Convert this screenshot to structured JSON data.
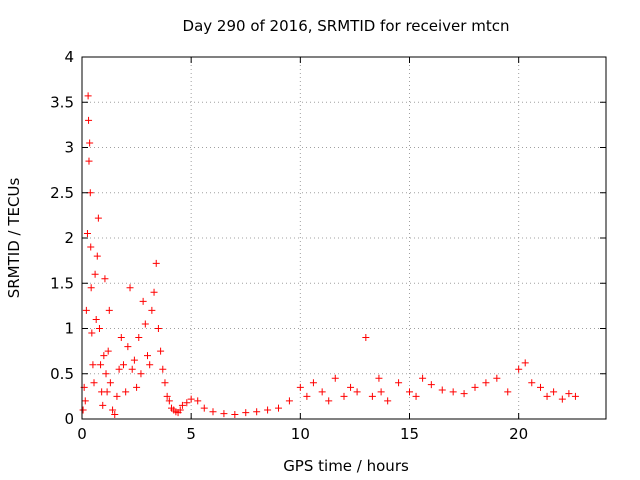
{
  "chart_data": {
    "type": "scatter",
    "title": "Day 290 of 2016, SRMTID for receiver mtcn",
    "xlabel": "GPS time / hours",
    "ylabel": "SRMTID / TECUs",
    "xlim": [
      0,
      24
    ],
    "ylim": [
      0,
      4
    ],
    "xticks": [
      0,
      5,
      10,
      15,
      20
    ],
    "xtick_labels": [
      "0",
      "5",
      "10",
      "15",
      "20"
    ],
    "yticks": [
      0,
      0.5,
      1,
      1.5,
      2,
      2.5,
      3,
      3.5,
      4
    ],
    "ytick_labels": [
      "0",
      "0.5",
      "1",
      "1.5",
      "2",
      "2.5",
      "3",
      "3.5",
      "4"
    ],
    "grid": true,
    "marker": "+",
    "color": "#ff0000",
    "series": [
      {
        "name": "SRMTID",
        "x": [
          0.05,
          0.1,
          0.15,
          0.2,
          0.25,
          0.28,
          0.3,
          0.32,
          0.35,
          0.38,
          0.4,
          0.42,
          0.45,
          0.5,
          0.55,
          0.6,
          0.65,
          0.7,
          0.75,
          0.8,
          0.85,
          0.9,
          0.95,
          1.0,
          1.05,
          1.1,
          1.15,
          1.2,
          1.25,
          1.3,
          1.4,
          1.5,
          1.6,
          1.7,
          1.8,
          1.9,
          2.0,
          2.1,
          2.2,
          2.3,
          2.4,
          2.5,
          2.6,
          2.7,
          2.8,
          2.9,
          3.0,
          3.1,
          3.2,
          3.3,
          3.4,
          3.5,
          3.6,
          3.7,
          3.8,
          3.9,
          4.0,
          4.1,
          4.2,
          4.3,
          4.4,
          4.5,
          4.6,
          4.8,
          5.0,
          5.3,
          5.6,
          6.0,
          6.5,
          7.0,
          7.5,
          8.0,
          8.5,
          9.0,
          9.5,
          10.0,
          10.3,
          10.6,
          11.0,
          11.3,
          11.6,
          12.0,
          12.3,
          12.6,
          13.0,
          13.3,
          13.6,
          13.7,
          14.0,
          14.5,
          15.0,
          15.3,
          15.6,
          16.0,
          16.5,
          17.0,
          17.5,
          18.0,
          18.5,
          19.0,
          19.5,
          20.0,
          20.3,
          20.6,
          21.0,
          21.3,
          21.6,
          22.0,
          22.3,
          22.6
        ],
        "y": [
          0.1,
          0.35,
          0.2,
          1.2,
          2.05,
          3.57,
          3.3,
          2.85,
          3.05,
          2.5,
          1.9,
          1.45,
          0.95,
          0.6,
          0.4,
          1.6,
          1.1,
          1.8,
          2.22,
          1.0,
          0.6,
          0.3,
          0.15,
          0.7,
          1.55,
          0.5,
          0.3,
          0.75,
          1.2,
          0.4,
          0.1,
          0.05,
          0.25,
          0.55,
          0.9,
          0.6,
          0.3,
          0.8,
          1.45,
          0.55,
          0.65,
          0.35,
          0.9,
          0.5,
          1.3,
          1.05,
          0.7,
          0.6,
          1.2,
          1.4,
          1.72,
          1.0,
          0.75,
          0.55,
          0.4,
          0.25,
          0.2,
          0.12,
          0.1,
          0.08,
          0.07,
          0.1,
          0.15,
          0.18,
          0.22,
          0.2,
          0.12,
          0.08,
          0.06,
          0.05,
          0.07,
          0.08,
          0.1,
          0.12,
          0.2,
          0.35,
          0.25,
          0.4,
          0.3,
          0.2,
          0.45,
          0.25,
          0.35,
          0.3,
          0.9,
          0.25,
          0.45,
          0.3,
          0.2,
          0.4,
          0.3,
          0.25,
          0.45,
          0.38,
          0.32,
          0.3,
          0.28,
          0.35,
          0.4,
          0.45,
          0.3,
          0.55,
          0.62,
          0.4,
          0.35,
          0.25,
          0.3,
          0.22,
          0.28,
          0.25
        ]
      }
    ]
  }
}
